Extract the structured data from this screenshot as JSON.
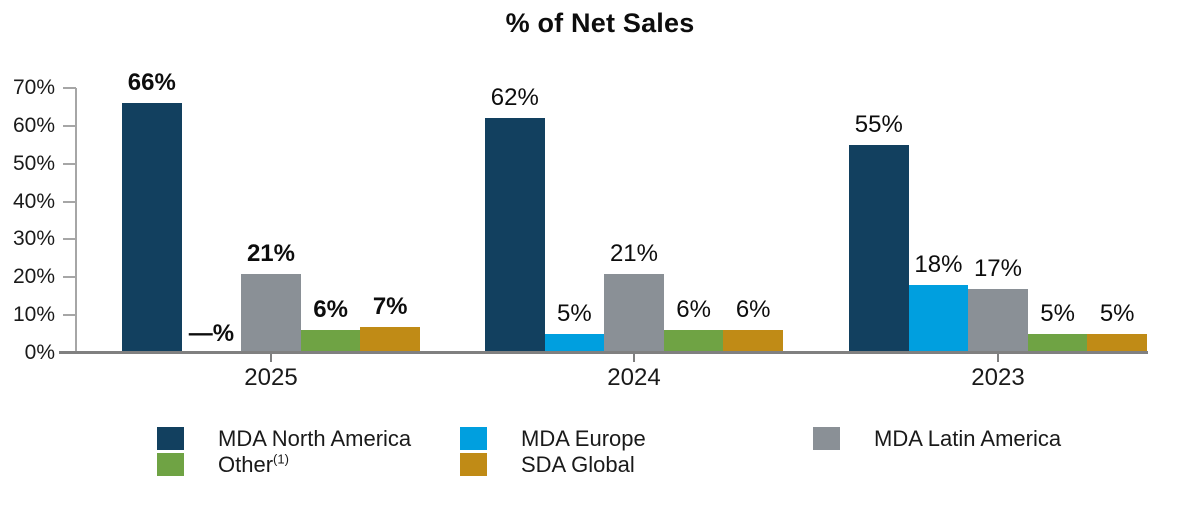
{
  "chart_data": {
    "type": "bar",
    "title": "% of Net Sales",
    "xlabel": "",
    "ylabel": "",
    "ylim": [
      0,
      70
    ],
    "ytick_labels": [
      "70%",
      "60%",
      "50%",
      "40%",
      "30%",
      "20%",
      "10%",
      "0%"
    ],
    "grid": false,
    "legend_position": "bottom",
    "categories": [
      "2025",
      "2024",
      "2023"
    ],
    "bold_value_labels_category": "2025",
    "series": [
      {
        "name": "MDA North America",
        "color": "#12405f",
        "values": [
          66,
          62,
          55
        ],
        "labels": [
          "66%",
          "62%",
          "55%"
        ]
      },
      {
        "name": "MDA Europe",
        "color": "#009fdf",
        "values": [
          0,
          5,
          18
        ],
        "labels": [
          "—%",
          "5%",
          "18%"
        ]
      },
      {
        "name": "MDA Latin America",
        "color": "#8a9096",
        "values": [
          21,
          21,
          17
        ],
        "labels": [
          "21%",
          "21%",
          "17%"
        ]
      },
      {
        "name": "Other",
        "superscript": "(1)",
        "color": "#6fa344",
        "values": [
          6,
          6,
          5
        ],
        "labels": [
          "6%",
          "6%",
          "5%"
        ]
      },
      {
        "name": "SDA Global",
        "color": "#c08b16",
        "values": [
          7,
          6,
          5
        ],
        "labels": [
          "7%",
          "6%",
          "5%"
        ]
      }
    ],
    "legend": {
      "columns": [
        [
          {
            "label": "MDA North America",
            "color": "#12405f"
          },
          {
            "label": "Other",
            "superscript": "(1)",
            "color": "#6fa344"
          }
        ],
        [
          {
            "label": "MDA Europe",
            "color": "#009fdf"
          },
          {
            "label": "SDA Global",
            "color": "#c08b16"
          }
        ],
        [
          {
            "label": "MDA Latin America",
            "color": "#8a9096"
          }
        ]
      ]
    },
    "axis_color": "#a6a6a6",
    "baseline_color": "#808080"
  }
}
